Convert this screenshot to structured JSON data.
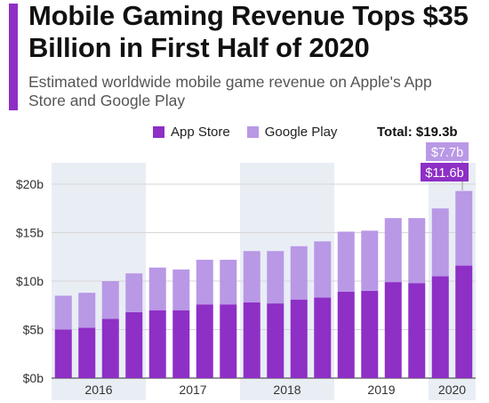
{
  "header": {
    "title": "Mobile Gaming Revenue Tops $35 Billion in First Half of 2020",
    "subtitle": "Estimated worldwide mobile game revenue on Apple's App Store and Google Play"
  },
  "colors": {
    "accent": "#8e2fc6",
    "app_store": "#8e2fc6",
    "google_play": "#b998e6",
    "band": "#e9eef5",
    "grid": "#d6d6d6"
  },
  "legend": {
    "app_store": "App Store",
    "google_play": "Google Play",
    "total": "Total: $19.3b"
  },
  "callouts": {
    "google_play": "$7.7b",
    "app_store": "$11.6b"
  },
  "chart_data": {
    "type": "bar",
    "stacked": true,
    "y_ticks": [
      "$0b",
      "$5b",
      "$10b",
      "$15b",
      "$20b"
    ],
    "ylim": [
      0,
      20
    ],
    "year_labels": [
      "2016",
      "2017",
      "2018",
      "2019",
      "2020"
    ],
    "year_quarter_counts": [
      4,
      4,
      4,
      4,
      2
    ],
    "series": [
      {
        "name": "App Store",
        "values": [
          5.0,
          5.2,
          6.1,
          6.8,
          7.0,
          7.0,
          7.6,
          7.6,
          7.8,
          7.7,
          8.1,
          8.3,
          8.9,
          9.0,
          9.9,
          9.8,
          10.5,
          11.6
        ]
      },
      {
        "name": "Google Play",
        "values": [
          3.5,
          3.6,
          3.9,
          4.0,
          4.4,
          4.2,
          4.6,
          4.6,
          5.3,
          5.4,
          5.5,
          5.8,
          6.2,
          6.2,
          6.6,
          6.7,
          7.0,
          7.7
        ]
      }
    ],
    "grid": true,
    "legend_position": "top-right"
  }
}
